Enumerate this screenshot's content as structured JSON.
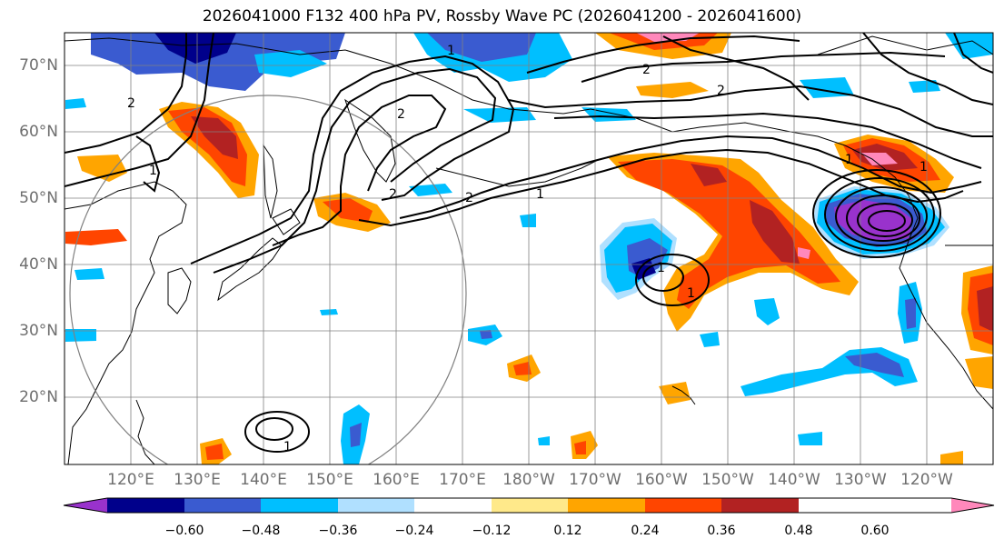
{
  "title": "2026041000 F132 400 hPa PV, Rossby Wave PC (2026041200 - 2026041600)",
  "lat_labels": [
    "70°N",
    "60°N",
    "50°N",
    "40°N",
    "30°N",
    "20°N"
  ],
  "lon_labels": [
    "120°E",
    "130°E",
    "140°E",
    "150°E",
    "160°E",
    "170°E",
    "180°W",
    "170°W",
    "160°W",
    "150°W",
    "140°W",
    "130°W",
    "120°W"
  ],
  "colorbar": {
    "colors": [
      "#9932cc",
      "#00008b",
      "#3a5bd0",
      "#00bfff",
      "#b0e0ff",
      "#ffffff",
      "#ffe98a",
      "#ffa500",
      "#ff4500",
      "#b22222",
      "#ff88bb"
    ],
    "tick_labels": [
      "−0.60",
      "−0.48",
      "−0.36",
      "−0.24",
      "−0.12",
      "0.12",
      "0.24",
      "0.36",
      "0.48",
      "0.60"
    ]
  },
  "contour_labels": [
    "1",
    "2",
    "2",
    "2",
    "2",
    "1",
    "1",
    "2",
    "2",
    "1",
    "1",
    "1",
    "1",
    "1"
  ]
}
